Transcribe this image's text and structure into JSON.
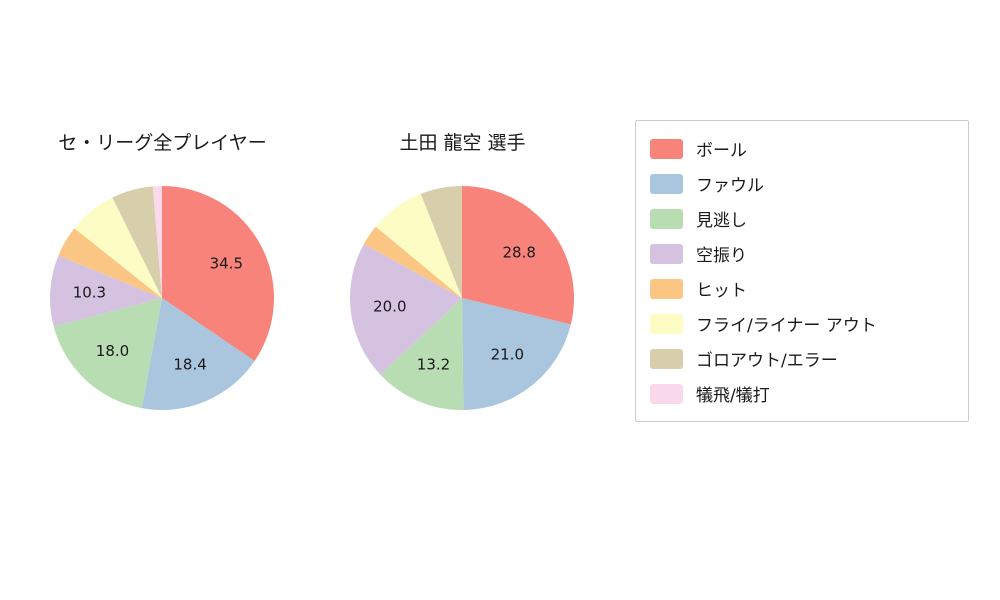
{
  "titles": {
    "left": "セ・リーグ全プレイヤー",
    "right": "土田 龍空  選手"
  },
  "legend": {
    "items": [
      {
        "label": "ボール",
        "color": "#F8837B"
      },
      {
        "label": "ファウル",
        "color": "#A9C6DE"
      },
      {
        "label": "見逃し",
        "color": "#B8DDB2"
      },
      {
        "label": "空振り",
        "color": "#D5C2E0"
      },
      {
        "label": "ヒット",
        "color": "#FBC584"
      },
      {
        "label": "フライ/ライナー アウト",
        "color": "#FDFCC4"
      },
      {
        "label": "ゴロアウト/エラー",
        "color": "#D7CEAC"
      },
      {
        "label": "犠飛/犠打",
        "color": "#FBD9EC"
      }
    ]
  },
  "chart_data": [
    {
      "type": "pie",
      "title": "セ・リーグ全プレイヤー",
      "categories": [
        "ボール",
        "ファウル",
        "見逃し",
        "空振り",
        "ヒット",
        "フライ/ライナー アウト",
        "ゴロアウト/エラー",
        "犠飛/犠打"
      ],
      "values": [
        34.5,
        18.4,
        18.0,
        10.3,
        4.5,
        7.0,
        6.0,
        1.3
      ],
      "labeled_values": [
        "34.5",
        "18.4",
        "18.0",
        "10.3"
      ],
      "start_angle": "top",
      "direction": "clockwise",
      "label_threshold": 10,
      "legend_position": "right",
      "svg_id": "pie-left"
    },
    {
      "type": "pie",
      "title": "土田 龍空  選手",
      "categories": [
        "ボール",
        "ファウル",
        "見逃し",
        "空振り",
        "ヒット",
        "フライ/ライナー アウト",
        "ゴロアウト/エラー",
        "犠飛/犠打"
      ],
      "values": [
        28.8,
        21.0,
        13.2,
        20.0,
        3.0,
        8.0,
        6.0,
        0.0
      ],
      "labeled_values": [
        "28.8",
        "21.0",
        "13.2",
        "20.0"
      ],
      "start_angle": "top",
      "direction": "clockwise",
      "label_threshold": 10,
      "legend_position": "right",
      "svg_id": "pie-right"
    }
  ]
}
